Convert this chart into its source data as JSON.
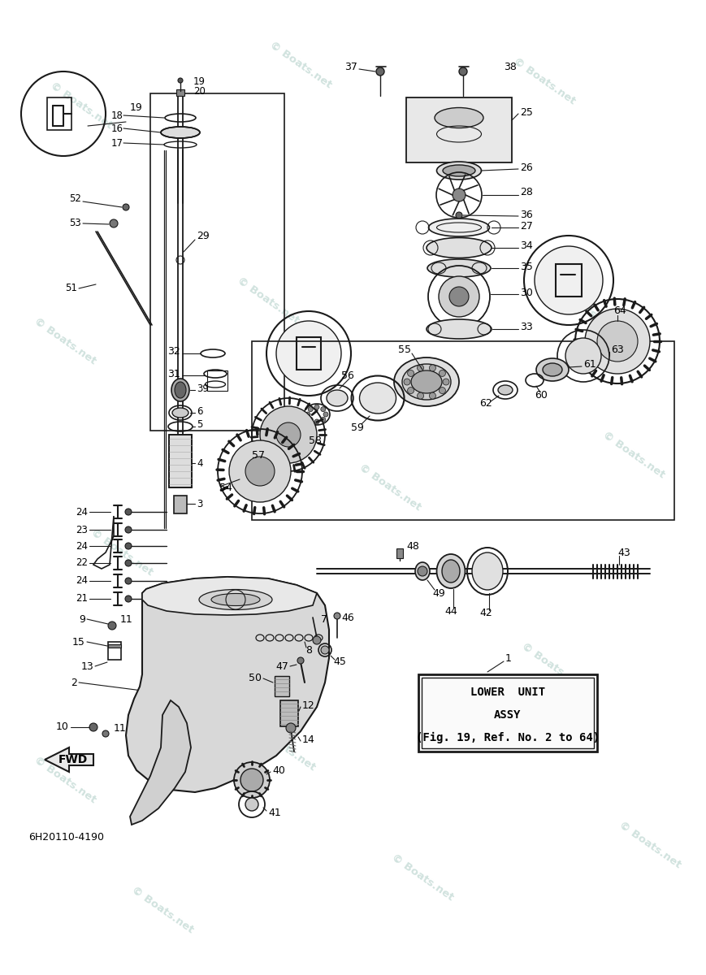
{
  "bg_color": "#ffffff",
  "watermark_color": "#c8ddd8",
  "part_number": "6H20110-4190",
  "label_box_text": [
    "LOWER  UNIT",
    "ASSY",
    "(Fig. 19, Ref. No. 2 to 64)"
  ],
  "fwd_label": "FWD",
  "line_color": "#1a1a1a",
  "wm_text": "Boats.net"
}
